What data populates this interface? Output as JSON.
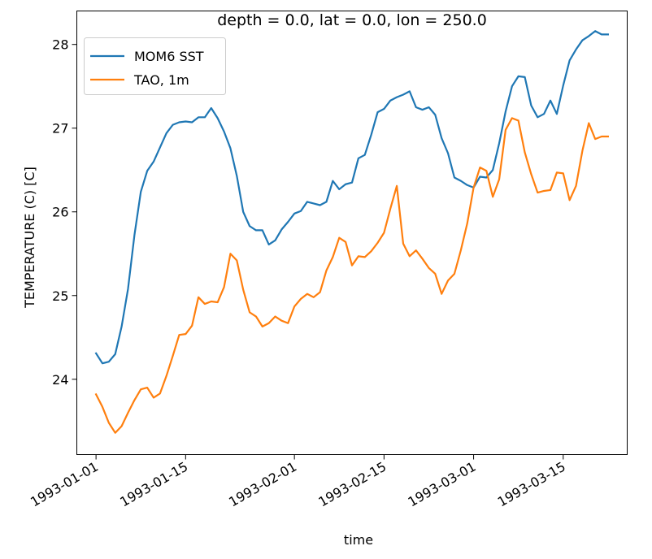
{
  "chart_data": {
    "type": "line",
    "title": "depth = 0.0, lat = 0.0, lon = 250.0",
    "xlabel": "time",
    "ylabel": "TEMPERATURE (C) [C]",
    "x_ticks": [
      "1993-01-01",
      "1993-01-15",
      "1993-02-01",
      "1993-02-15",
      "1993-03-01",
      "1993-03-15"
    ],
    "y_ticks": [
      24,
      25,
      26,
      27,
      28
    ],
    "ylim": [
      23.1,
      28.4
    ],
    "xlim": [
      "1992-12-29",
      "1993-03-25"
    ],
    "grid": false,
    "legend_position": "top-left",
    "x": [
      "1993-01-01",
      "1993-01-02",
      "1993-01-03",
      "1993-01-04",
      "1993-01-05",
      "1993-01-06",
      "1993-01-07",
      "1993-01-08",
      "1993-01-09",
      "1993-01-10",
      "1993-01-11",
      "1993-01-12",
      "1993-01-13",
      "1993-01-14",
      "1993-01-15",
      "1993-01-16",
      "1993-01-17",
      "1993-01-18",
      "1993-01-19",
      "1993-01-20",
      "1993-01-21",
      "1993-01-22",
      "1993-01-23",
      "1993-01-24",
      "1993-01-25",
      "1993-01-26",
      "1993-01-27",
      "1993-01-28",
      "1993-01-29",
      "1993-01-30",
      "1993-01-31",
      "1993-02-01",
      "1993-02-02",
      "1993-02-03",
      "1993-02-04",
      "1993-02-05",
      "1993-02-06",
      "1993-02-07",
      "1993-02-08",
      "1993-02-09",
      "1993-02-10",
      "1993-02-11",
      "1993-02-12",
      "1993-02-13",
      "1993-02-14",
      "1993-02-15",
      "1993-02-16",
      "1993-02-17",
      "1993-02-18",
      "1993-02-19",
      "1993-02-20",
      "1993-02-21",
      "1993-02-22",
      "1993-02-23",
      "1993-02-24",
      "1993-02-25",
      "1993-02-26",
      "1993-02-27",
      "1993-02-28",
      "1993-03-01",
      "1993-03-02",
      "1993-03-03",
      "1993-03-04",
      "1993-03-05",
      "1993-03-06",
      "1993-03-07",
      "1993-03-08",
      "1993-03-09",
      "1993-03-10",
      "1993-03-11",
      "1993-03-12",
      "1993-03-13",
      "1993-03-14",
      "1993-03-15",
      "1993-03-16",
      "1993-03-17",
      "1993-03-18",
      "1993-03-19",
      "1993-03-20",
      "1993-03-21",
      "1993-03-22"
    ],
    "series": [
      {
        "name": "MOM6 SST",
        "color": "#1f77b4",
        "values": [
          24.31,
          24.19,
          24.21,
          24.3,
          24.63,
          25.08,
          25.72,
          26.24,
          26.49,
          26.6,
          26.77,
          26.94,
          27.04,
          27.07,
          27.08,
          27.07,
          27.13,
          27.13,
          27.24,
          27.12,
          26.96,
          26.76,
          26.43,
          26.0,
          25.83,
          25.78,
          25.78,
          25.61,
          25.66,
          25.79,
          25.88,
          25.98,
          26.01,
          26.12,
          26.1,
          26.08,
          26.12,
          26.37,
          26.27,
          26.33,
          26.35,
          26.64,
          26.68,
          26.92,
          27.19,
          27.23,
          27.33,
          27.37,
          27.4,
          27.44,
          27.25,
          27.22,
          27.25,
          27.16,
          26.88,
          26.7,
          26.41,
          26.37,
          26.32,
          26.29,
          26.42,
          26.41,
          26.5,
          26.82,
          27.2,
          27.5,
          27.62,
          27.61,
          27.27,
          27.13,
          27.17,
          27.33,
          27.17,
          27.51,
          27.81,
          27.94,
          28.05,
          28.1,
          28.16,
          28.12,
          28.12
        ]
      },
      {
        "name": "TAO, 1m",
        "color": "#ff7f0e",
        "values": [
          23.82,
          23.67,
          23.48,
          23.36,
          23.44,
          23.6,
          23.75,
          23.88,
          23.9,
          23.78,
          23.83,
          24.04,
          24.28,
          24.53,
          24.54,
          24.64,
          24.98,
          24.9,
          24.93,
          24.92,
          25.1,
          25.5,
          25.42,
          25.07,
          24.8,
          24.75,
          24.63,
          24.67,
          24.75,
          24.7,
          24.67,
          24.87,
          24.96,
          25.02,
          24.98,
          25.04,
          25.3,
          25.46,
          25.69,
          25.64,
          25.36,
          25.47,
          25.46,
          25.53,
          25.63,
          25.75,
          26.04,
          26.31,
          25.62,
          25.47,
          25.54,
          25.44,
          25.33,
          25.26,
          25.02,
          25.18,
          25.26,
          25.54,
          25.86,
          26.29,
          26.53,
          26.49,
          26.18,
          26.39,
          26.98,
          27.12,
          27.09,
          26.71,
          26.45,
          26.23,
          26.25,
          26.26,
          26.47,
          26.46,
          26.14,
          26.31,
          26.73,
          27.06,
          26.87,
          26.9,
          26.9
        ]
      }
    ]
  }
}
